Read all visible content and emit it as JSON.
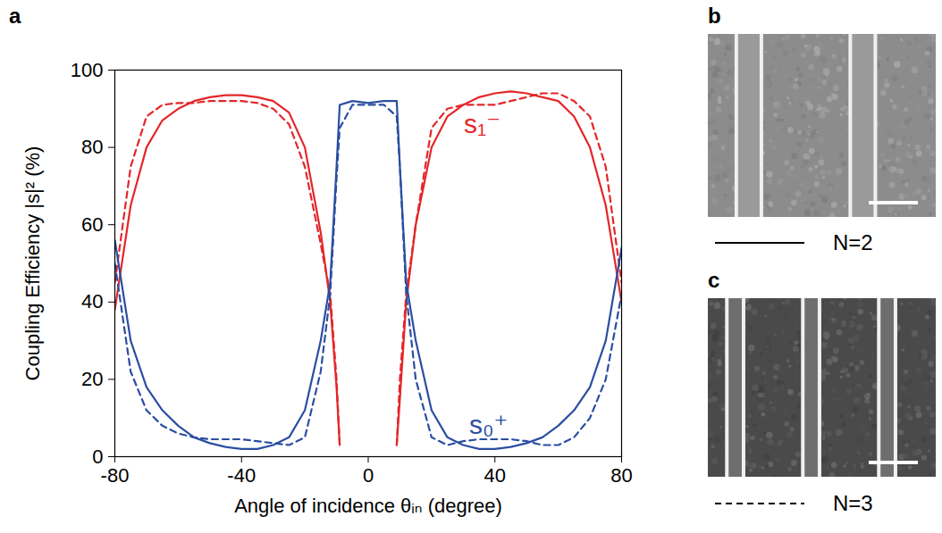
{
  "chart_data": {
    "type": "line",
    "panel_label": "a",
    "x_label": "Angle of incidence θᵢₙ (degree)",
    "y_label": "Coupling Efficiency |s|² (%)",
    "x": [
      -80,
      -75,
      -70,
      -65,
      -60,
      -55,
      -50,
      -45,
      -40,
      -35,
      -30,
      -25,
      -20,
      -15,
      -12,
      -10,
      -9,
      -5,
      0,
      5,
      9,
      10,
      12,
      15,
      20,
      25,
      30,
      35,
      40,
      45,
      50,
      55,
      60,
      65,
      70,
      75,
      80
    ],
    "series": [
      {
        "name": "N=2",
        "color": "#e4262a",
        "line_style": "solid",
        "values": [
          38,
          65,
          80,
          87,
          90,
          92,
          93,
          93.5,
          93.5,
          93,
          92,
          89,
          80,
          58,
          40,
          18,
          3,
          null,
          null,
          null,
          3,
          15,
          40,
          60,
          80,
          88,
          91,
          93,
          94,
          94.5,
          94,
          93,
          92,
          88,
          80,
          65,
          40
        ]
      },
      {
        "name": "N=3",
        "color": "#e4262a",
        "line_style": "dashed",
        "values": [
          45,
          75,
          88,
          91,
          91.5,
          91.5,
          92,
          92,
          92,
          91.5,
          90,
          86,
          75,
          55,
          42,
          20,
          3,
          null,
          null,
          null,
          3,
          20,
          42,
          60,
          85,
          90,
          91,
          91,
          91,
          92,
          93,
          94,
          94,
          92,
          88,
          75,
          45
        ]
      },
      {
        "name": "N=2",
        "color": "#2b4ea2",
        "line_style": "solid",
        "values": [
          56,
          30,
          18,
          12,
          8,
          5,
          3.5,
          2.5,
          2,
          2,
          3,
          5,
          12,
          30,
          45,
          75,
          91,
          92,
          91.5,
          92,
          92,
          75,
          45,
          30,
          12,
          5,
          3,
          2,
          2,
          2.5,
          3.5,
          5,
          8,
          12,
          18,
          30,
          54
        ]
      },
      {
        "name": "N=3",
        "color": "#2b4ea2",
        "line_style": "dashed",
        "values": [
          50,
          22,
          12,
          8,
          6,
          5,
          4.5,
          4.5,
          4.5,
          4,
          3.5,
          3,
          5,
          22,
          42,
          72,
          85,
          91,
          91,
          91,
          88,
          75,
          42,
          20,
          5,
          3,
          4,
          4.5,
          4.5,
          4.5,
          4,
          3,
          3,
          5,
          10,
          20,
          42
        ]
      }
    ],
    "annotations": [
      {
        "text": "s₁⁻",
        "x": 36,
        "y": 86,
        "color": "#e4262a"
      },
      {
        "text": "s₀⁺",
        "x": 38,
        "y": 8,
        "color": "#2b4ea2"
      }
    ],
    "xlim": [
      -80,
      80
    ],
    "xticks": [
      -80,
      -40,
      0,
      40,
      80
    ],
    "ylim": [
      0,
      100
    ],
    "yticks": [
      0,
      20,
      40,
      60,
      80,
      100
    ],
    "legend": "right"
  },
  "images": [
    {
      "panel_label": "b",
      "legend_entry": 0
    },
    {
      "panel_label": "c",
      "legend_entry": 1
    }
  ]
}
